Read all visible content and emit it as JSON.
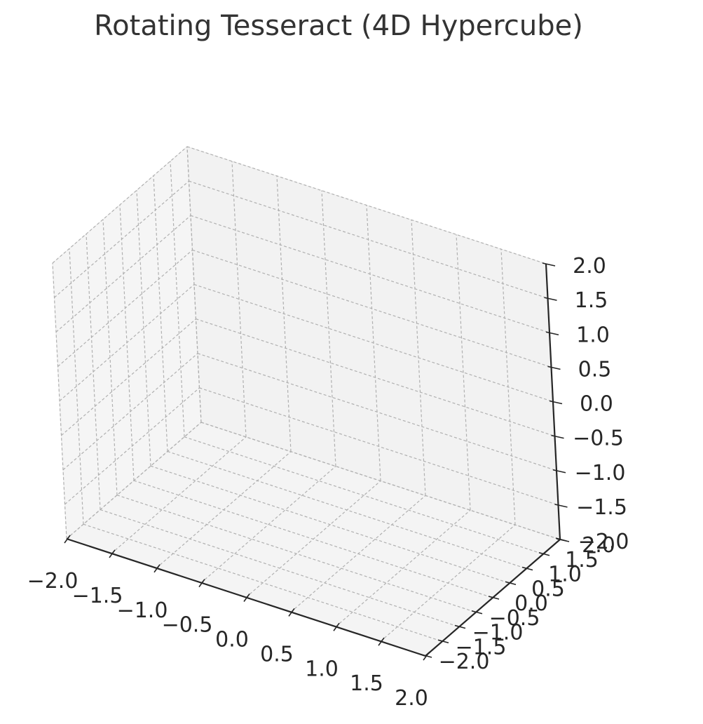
{
  "chart_data": {
    "type": "scatter",
    "projection": "3d",
    "title": "Rotating Tesseract (4D Hypercube)",
    "xlabel": "",
    "ylabel": "",
    "zlabel": "",
    "xlim": [
      -2.0,
      2.0
    ],
    "ylim": [
      -2.0,
      2.0
    ],
    "zlim": [
      -2.0,
      2.0
    ],
    "x_ticks": [
      "−2.0",
      "−1.5",
      "−1.0",
      "−0.5",
      "0.0",
      "0.5",
      "1.0",
      "1.5",
      "2.0"
    ],
    "y_ticks": [
      "−2.0",
      "−1.5",
      "−1.0",
      "−0.5",
      "0.0",
      "0.5",
      "1.0",
      "1.5",
      "2.0"
    ],
    "z_ticks": [
      "−2.0",
      "−1.5",
      "−1.0",
      "−0.5",
      "0.0",
      "0.5",
      "1.0",
      "1.5",
      "2.0"
    ],
    "grid": true,
    "series": []
  },
  "colors": {
    "pane_left": "#f5f5f5",
    "pane_back": "#f2f2f2",
    "pane_floor": "#f4f4f4",
    "grid": "#b0b0b0",
    "axis": "#262626",
    "title": "#333333"
  }
}
